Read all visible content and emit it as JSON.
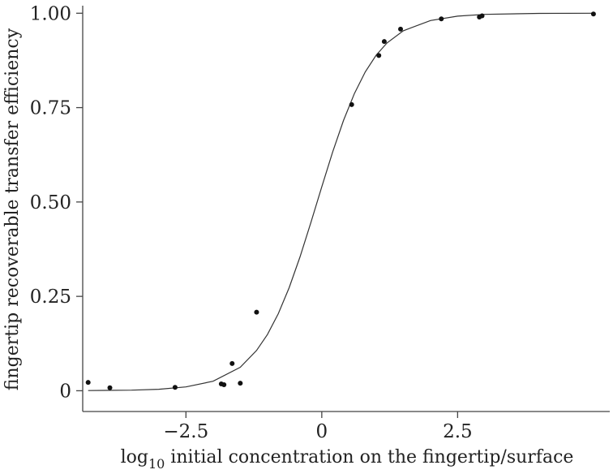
{
  "chart_data": {
    "type": "scatter",
    "title": "",
    "xlabel_prefix": "log",
    "xlabel_sub": "10",
    "xlabel_rest": " initial concentration on the fingertip/surface",
    "ylabel": "fingertip recoverable transfer efficiency",
    "xlim": [
      -4.4,
      5.3
    ],
    "ylim": [
      -0.055,
      1.02
    ],
    "x_ticks": [
      -2.5,
      0,
      2.5
    ],
    "x_tick_labels": [
      "−2.5",
      "0",
      "2.5"
    ],
    "y_ticks": [
      0,
      0.25,
      0.5,
      0.75,
      1.0
    ],
    "y_tick_labels": [
      "0",
      "0.25",
      "0.50",
      "0.75",
      "1.00"
    ],
    "grid": false,
    "series": [
      {
        "points": [
          {
            "x": -4.3,
            "y": 0.022
          },
          {
            "x": -3.9,
            "y": 0.008
          },
          {
            "x": -2.7,
            "y": 0.009
          },
          {
            "x": -1.85,
            "y": 0.018
          },
          {
            "x": -1.8,
            "y": 0.016
          },
          {
            "x": -1.65,
            "y": 0.072
          },
          {
            "x": -1.5,
            "y": 0.02
          },
          {
            "x": -1.2,
            "y": 0.208
          },
          {
            "x": 0.55,
            "y": 0.758
          },
          {
            "x": 1.05,
            "y": 0.888
          },
          {
            "x": 1.15,
            "y": 0.925
          },
          {
            "x": 1.45,
            "y": 0.958
          },
          {
            "x": 2.2,
            "y": 0.985
          },
          {
            "x": 2.9,
            "y": 0.99
          },
          {
            "x": 2.95,
            "y": 0.993
          },
          {
            "x": 5.0,
            "y": 0.998
          }
        ]
      },
      {
        "type": "line",
        "x": [
          -4.3,
          -3.5,
          -3.0,
          -2.5,
          -2.0,
          -1.5,
          -1.2,
          -1.0,
          -0.8,
          -0.6,
          -0.4,
          -0.2,
          0,
          0.2,
          0.4,
          0.6,
          0.8,
          1.0,
          1.2,
          1.5,
          2.0,
          2.5,
          3.0,
          4.0,
          5.0
        ],
        "y": [
          0.0004,
          0.0016,
          0.004,
          0.0101,
          0.0253,
          0.0622,
          0.1067,
          0.1489,
          0.204,
          0.2729,
          0.3546,
          0.4455,
          0.54,
          0.6322,
          0.7158,
          0.7873,
          0.8448,
          0.8888,
          0.9214,
          0.9536,
          0.9807,
          0.9922,
          0.9969,
          0.9995,
          0.9999
        ]
      }
    ]
  }
}
